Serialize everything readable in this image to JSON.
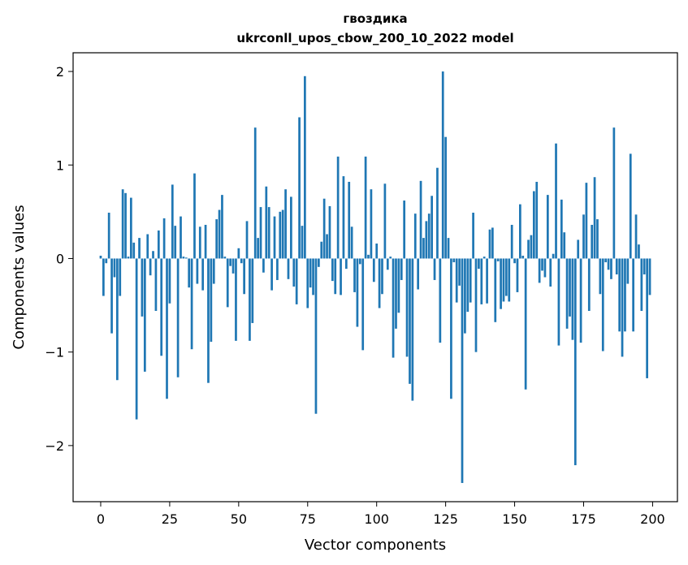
{
  "chart_data": {
    "type": "bar",
    "title": "гвоздика",
    "subtitle": "ukrconll_upos_cbow_200_10_2022 model",
    "xlabel": "Vector components",
    "ylabel": "Components values",
    "xlim": [
      -10,
      209
    ],
    "ylim": [
      -2.6,
      2.2
    ],
    "xticks": [
      0,
      25,
      50,
      75,
      100,
      125,
      150,
      175,
      200
    ],
    "xtick_labels": [
      "0",
      "25",
      "50",
      "75",
      "100",
      "125",
      "150",
      "175",
      "200"
    ],
    "yticks": [
      -2,
      -1,
      0,
      1,
      2
    ],
    "ytick_labels": [
      "−2",
      "−1",
      "0",
      "1",
      "2"
    ],
    "grid": false,
    "bar_color": "#1f77b4",
    "x": [
      0,
      1,
      2,
      3,
      4,
      5,
      6,
      7,
      8,
      9,
      10,
      11,
      12,
      13,
      14,
      15,
      16,
      17,
      18,
      19,
      20,
      21,
      22,
      23,
      24,
      25,
      26,
      27,
      28,
      29,
      30,
      31,
      32,
      33,
      34,
      35,
      36,
      37,
      38,
      39,
      40,
      41,
      42,
      43,
      44,
      45,
      46,
      47,
      48,
      49,
      50,
      51,
      52,
      53,
      54,
      55,
      56,
      57,
      58,
      59,
      60,
      61,
      62,
      63,
      64,
      65,
      66,
      67,
      68,
      69,
      70,
      71,
      72,
      73,
      74,
      75,
      76,
      77,
      78,
      79,
      80,
      81,
      82,
      83,
      84,
      85,
      86,
      87,
      88,
      89,
      90,
      91,
      92,
      93,
      94,
      95,
      96,
      97,
      98,
      99,
      100,
      101,
      102,
      103,
      104,
      105,
      106,
      107,
      108,
      109,
      110,
      111,
      112,
      113,
      114,
      115,
      116,
      117,
      118,
      119,
      120,
      121,
      122,
      123,
      124,
      125,
      126,
      127,
      128,
      129,
      130,
      131,
      132,
      133,
      134,
      135,
      136,
      137,
      138,
      139,
      140,
      141,
      142,
      143,
      144,
      145,
      146,
      147,
      148,
      149,
      150,
      151,
      152,
      153,
      154,
      155,
      156,
      157,
      158,
      159,
      160,
      161,
      162,
      163,
      164,
      165,
      166,
      167,
      168,
      169,
      170,
      171,
      172,
      173,
      174,
      175,
      176,
      177,
      178,
      179,
      180,
      181,
      182,
      183,
      184,
      185,
      186,
      187,
      188,
      189,
      190,
      191,
      192,
      193,
      194,
      195,
      196,
      197,
      198,
      199
    ],
    "values": [
      0.03,
      -0.4,
      -0.05,
      0.49,
      -0.8,
      -0.2,
      -1.3,
      -0.4,
      0.74,
      0.7,
      0.02,
      0.65,
      0.17,
      -1.72,
      0.22,
      -0.62,
      -1.21,
      0.26,
      -0.18,
      0.08,
      -0.56,
      0.3,
      -1.04,
      0.43,
      -1.5,
      -0.48,
      0.79,
      0.35,
      -1.27,
      0.45,
      0.02,
      0.01,
      -0.31,
      -0.97,
      0.91,
      -0.27,
      0.34,
      -0.34,
      0.36,
      -1.33,
      -0.89,
      -0.27,
      0.42,
      0.52,
      0.68,
      0.02,
      -0.52,
      -0.08,
      -0.16,
      -0.88,
      0.11,
      -0.05,
      -0.38,
      0.4,
      -0.88,
      -0.69,
      1.4,
      0.22,
      0.55,
      -0.15,
      0.77,
      0.55,
      -0.34,
      0.45,
      -0.23,
      0.5,
      0.52,
      0.74,
      -0.22,
      0.66,
      -0.3,
      -0.49,
      1.51,
      0.35,
      1.95,
      -0.53,
      -0.31,
      -0.39,
      -1.66,
      -0.09,
      0.18,
      0.64,
      0.26,
      0.56,
      -0.24,
      -0.38,
      1.09,
      -0.39,
      0.88,
      -0.11,
      0.82,
      0.34,
      -0.36,
      -0.73,
      -0.06,
      -0.98,
      1.09,
      0.04,
      0.74,
      -0.25,
      0.16,
      -0.53,
      -0.38,
      0.8,
      -0.12,
      0.02,
      -1.06,
      -0.75,
      -0.58,
      -0.23,
      0.62,
      -1.05,
      -1.34,
      -1.52,
      0.48,
      -0.33,
      0.83,
      0.22,
      0.4,
      0.48,
      0.67,
      -0.23,
      0.97,
      -0.9,
      2.0,
      1.3,
      0.22,
      -1.5,
      -0.04,
      -0.47,
      -0.29,
      -2.4,
      -0.8,
      -0.57,
      -0.47,
      0.49,
      -1.0,
      -0.11,
      -0.49,
      0.02,
      -0.48,
      0.31,
      0.33,
      -0.68,
      -0.03,
      -0.54,
      -0.46,
      -0.4,
      -0.46,
      0.36,
      -0.05,
      -0.36,
      0.58,
      0.03,
      -1.4,
      0.2,
      0.25,
      0.72,
      0.82,
      -0.26,
      -0.13,
      -0.2,
      0.68,
      -0.3,
      0.05,
      1.23,
      -0.93,
      0.63,
      0.28,
      -0.75,
      -0.62,
      -0.87,
      -2.21,
      0.2,
      -0.9,
      0.47,
      0.81,
      -0.56,
      0.36,
      0.87,
      0.42,
      -0.38,
      -0.99,
      -0.04,
      -0.12,
      -0.22,
      1.4,
      -0.17,
      -0.78,
      -1.05,
      -0.78,
      -0.27,
      1.12,
      -0.78,
      0.47,
      0.15,
      -0.56,
      -0.17,
      -1.28,
      -0.39
    ]
  }
}
